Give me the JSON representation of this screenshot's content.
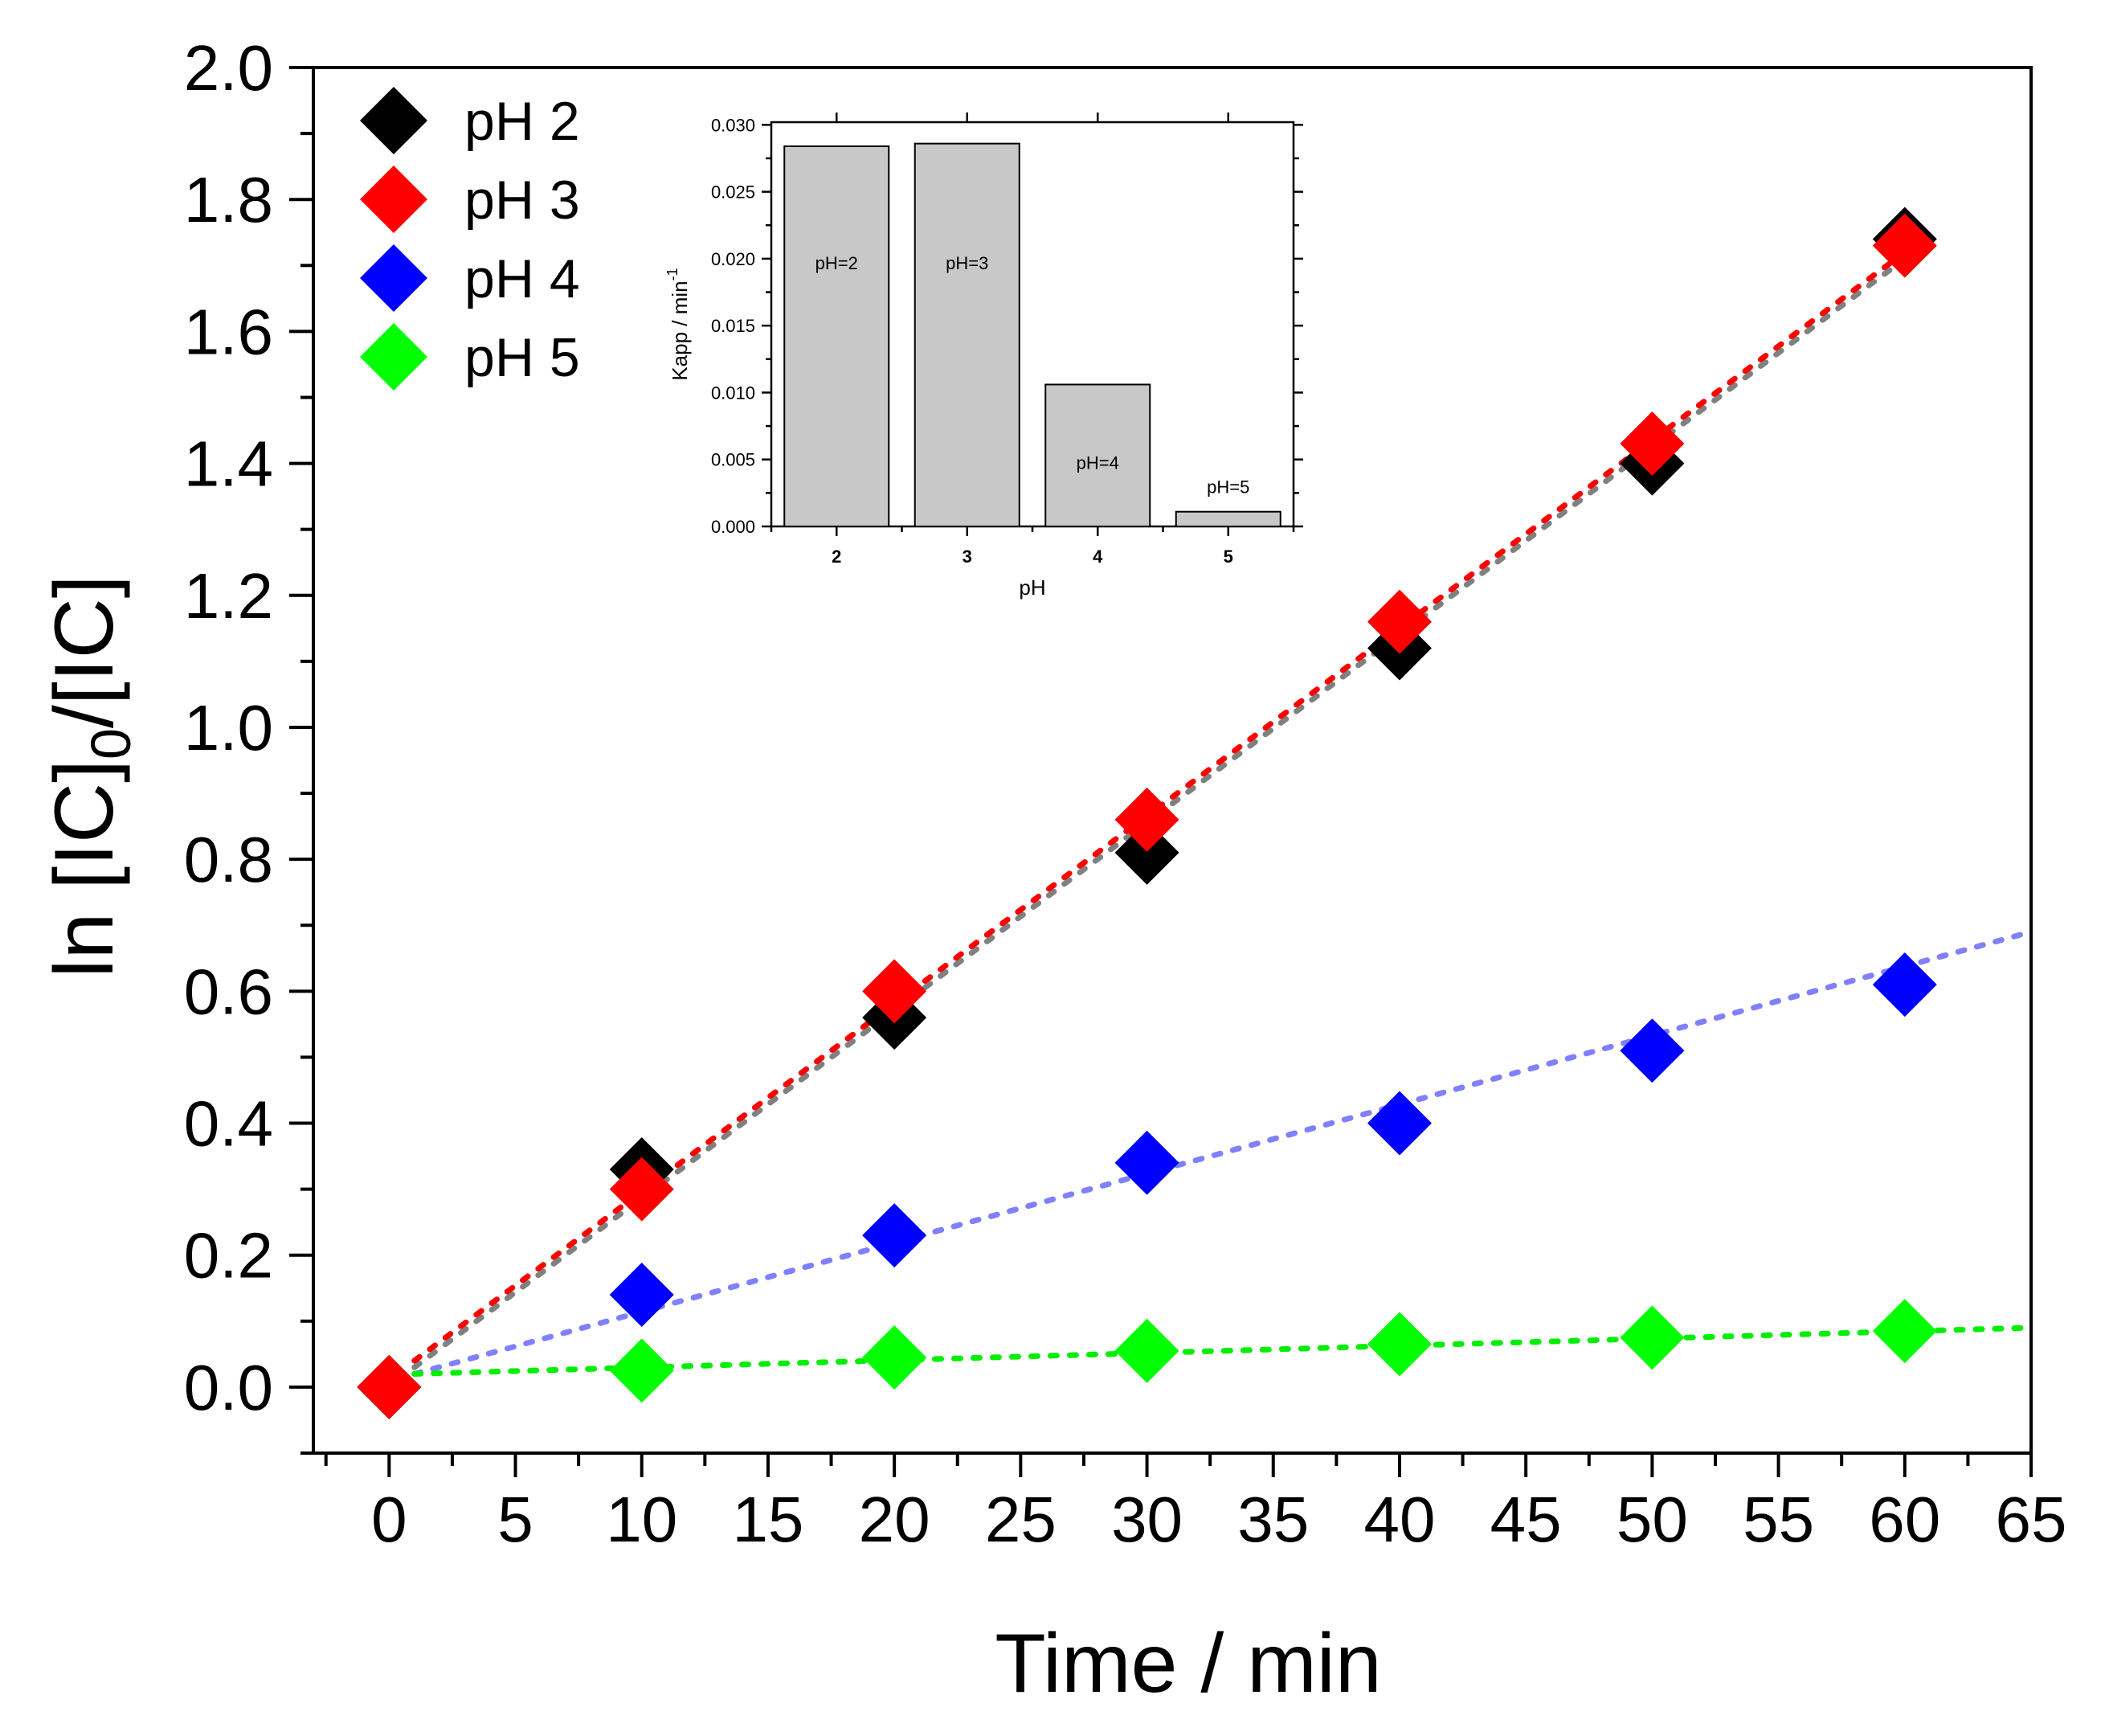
{
  "chart_data": [
    {
      "type": "scatter",
      "title": "",
      "xlabel": "Time / min",
      "ylabel": "ln [IC]0/[IC]",
      "ylabel_parts": {
        "prefix": "ln [IC]",
        "sub": "0",
        "suffix": "/[IC]"
      },
      "xlim": [
        -3,
        65
      ],
      "ylim": [
        -0.1,
        2.0
      ],
      "xticks": [
        0,
        5,
        10,
        15,
        20,
        25,
        30,
        35,
        40,
        45,
        50,
        55,
        60,
        65
      ],
      "yticks": [
        0.0,
        0.2,
        0.4,
        0.6,
        0.8,
        1.0,
        1.2,
        1.4,
        1.6,
        1.8,
        2.0
      ],
      "ytick_labels": [
        "0.0",
        "0.2",
        "0.4",
        "0.6",
        "0.8",
        "1.0",
        "1.2",
        "1.4",
        "1.6",
        "1.8",
        "2.0"
      ],
      "legend_position": "top-left",
      "marker": "diamond",
      "series": [
        {
          "name": "pH 2",
          "color": "#000000",
          "fit_color": "#808080",
          "x": [
            0,
            10,
            20,
            30,
            40,
            50,
            60
          ],
          "y": [
            0.0,
            0.33,
            0.56,
            0.81,
            1.12,
            1.4,
            1.74
          ],
          "fit": {
            "x": [
              1,
              60
            ],
            "y": [
              0.03,
              1.71
            ]
          }
        },
        {
          "name": "pH 3",
          "color": "#ff0000",
          "fit_color": "#ff0000",
          "x": [
            0,
            10,
            20,
            30,
            40,
            50,
            60
          ],
          "y": [
            0.0,
            0.3,
            0.6,
            0.86,
            1.16,
            1.43,
            1.73
          ],
          "fit": {
            "x": [
              1,
              60
            ],
            "y": [
              0.04,
              1.72
            ]
          }
        },
        {
          "name": "pH 4",
          "color": "#0000ff",
          "fit_color": "#8080ff",
          "x": [
            0,
            10,
            20,
            30,
            40,
            50,
            60
          ],
          "y": [
            0.0,
            0.14,
            0.23,
            0.34,
            0.4,
            0.51,
            0.61
          ],
          "fit": {
            "x": [
              1,
              65
            ],
            "y": [
              0.02,
              0.69
            ]
          }
        },
        {
          "name": "pH 5",
          "color": "#00ff00",
          "fit_color": "#00ee00",
          "x": [
            0,
            10,
            20,
            30,
            40,
            50,
            60
          ],
          "y": [
            0.0,
            0.025,
            0.045,
            0.055,
            0.065,
            0.075,
            0.085
          ],
          "fit": {
            "x": [
              1,
              65
            ],
            "y": [
              0.02,
              0.09
            ]
          }
        }
      ]
    },
    {
      "type": "bar",
      "title": "",
      "xlabel": "pH",
      "ylabel": "Kapp / min",
      "ylabel_sup": "-1",
      "categories": [
        "2",
        "3",
        "4",
        "5"
      ],
      "values": [
        0.0284,
        0.0286,
        0.0106,
        0.0011
      ],
      "bar_labels": [
        "pH=2",
        "pH=3",
        "pH=4",
        "pH=5"
      ],
      "ylim": [
        0,
        0.0302
      ],
      "yticks": [
        0.0,
        0.005,
        0.01,
        0.015,
        0.02,
        0.025,
        0.03
      ],
      "ytick_labels": [
        "0.000",
        "0.005",
        "0.010",
        "0.015",
        "0.020",
        "0.025",
        "0.030"
      ],
      "bar_color": "#c8c8c8"
    }
  ]
}
